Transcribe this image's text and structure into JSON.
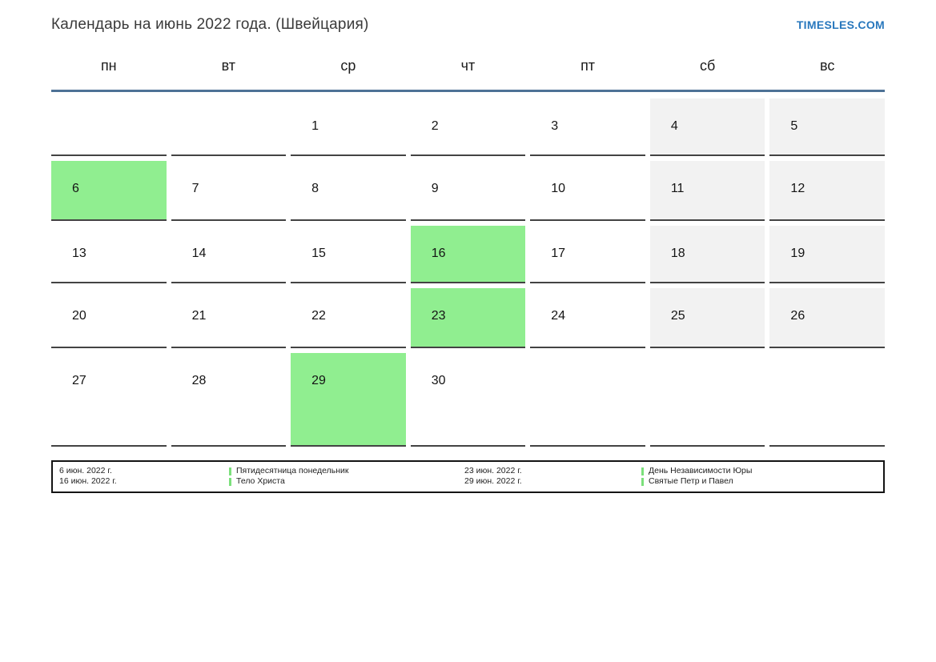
{
  "header": {
    "title": "Календарь на июнь 2022 года. (Швейцария)",
    "site_link": "TIMESLES.COM"
  },
  "calendar": {
    "weekday_headers": [
      "пн",
      "вт",
      "ср",
      "чт",
      "пт",
      "сб",
      "вс"
    ],
    "weeks": [
      [
        {
          "day": "",
          "type": "empty"
        },
        {
          "day": "",
          "type": "empty"
        },
        {
          "day": "1",
          "type": "workday"
        },
        {
          "day": "2",
          "type": "workday"
        },
        {
          "day": "3",
          "type": "workday"
        },
        {
          "day": "4",
          "type": "weekend"
        },
        {
          "day": "5",
          "type": "weekend"
        }
      ],
      [
        {
          "day": "6",
          "type": "holiday"
        },
        {
          "day": "7",
          "type": "workday"
        },
        {
          "day": "8",
          "type": "workday"
        },
        {
          "day": "9",
          "type": "workday"
        },
        {
          "day": "10",
          "type": "workday"
        },
        {
          "day": "11",
          "type": "weekend"
        },
        {
          "day": "12",
          "type": "weekend"
        }
      ],
      [
        {
          "day": "13",
          "type": "workday"
        },
        {
          "day": "14",
          "type": "workday"
        },
        {
          "day": "15",
          "type": "workday"
        },
        {
          "day": "16",
          "type": "holiday"
        },
        {
          "day": "17",
          "type": "workday"
        },
        {
          "day": "18",
          "type": "weekend"
        },
        {
          "day": "19",
          "type": "weekend"
        }
      ],
      [
        {
          "day": "20",
          "type": "workday"
        },
        {
          "day": "21",
          "type": "workday"
        },
        {
          "day": "22",
          "type": "workday"
        },
        {
          "day": "23",
          "type": "holiday"
        },
        {
          "day": "24",
          "type": "workday"
        },
        {
          "day": "25",
          "type": "weekend"
        },
        {
          "day": "26",
          "type": "weekend"
        }
      ],
      [
        {
          "day": "27",
          "type": "workday"
        },
        {
          "day": "28",
          "type": "workday"
        },
        {
          "day": "29",
          "type": "holiday"
        },
        {
          "day": "30",
          "type": "workday"
        },
        {
          "day": "",
          "type": "empty"
        },
        {
          "day": "",
          "type": "empty"
        },
        {
          "day": "",
          "type": "empty"
        }
      ]
    ]
  },
  "legend": {
    "groups": [
      {
        "entries": [
          {
            "date": "6 июн. 2022 г.",
            "name": "Пятидесятница понедельник"
          },
          {
            "date": "16 июн. 2022 г.",
            "name": "Тело Христа"
          }
        ]
      },
      {
        "entries": [
          {
            "date": "23 июн. 2022 г.",
            "name": "День Независимости Юры"
          },
          {
            "date": "29 июн. 2022 г.",
            "name": "Святые Петр и Павел"
          }
        ]
      }
    ]
  },
  "colors": {
    "holiday_green": "#90ee90",
    "weekend_gray": "#f2f2f2",
    "header_rule_blue": "#4e7296",
    "cell_border": "#434343",
    "link_blue": "#2777bd",
    "legend_marker_green": "#7be07b"
  }
}
